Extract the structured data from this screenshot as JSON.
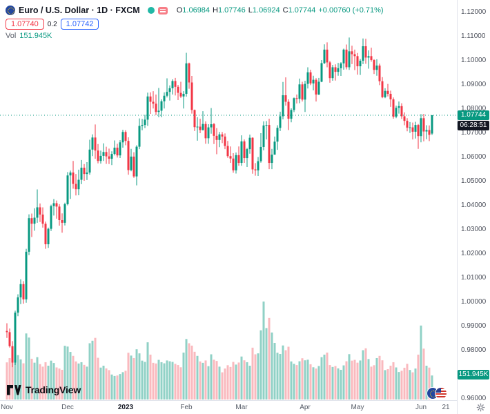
{
  "header": {
    "symbol_title": "Euro / U.S. Dollar · 1D · FXCM",
    "ohlc": {
      "o_label": "O",
      "o": "1.06984",
      "h_label": "H",
      "h": "1.07746",
      "l_label": "L",
      "l": "1.06924",
      "c_label": "C",
      "c": "1.07744",
      "change": "+0.00760 (+0.71%)"
    },
    "bid": "1.07740",
    "spread": "0.2",
    "ask": "1.07742",
    "vol_label": "Vol",
    "vol_value": "151.945K"
  },
  "price_axis": {
    "labels": [
      "1.12000",
      "1.11000",
      "1.10000",
      "1.09000",
      "1.08000",
      "1.07000",
      "1.06000",
      "1.05000",
      "1.04000",
      "1.03000",
      "1.02000",
      "1.01000",
      "1.00000",
      "0.99000",
      "0.98000",
      "0.97000",
      "0.96000"
    ],
    "last_price_label": "1.07744",
    "countdown": "06:28:51",
    "volume_label": "151.945K"
  },
  "time_axis": {
    "labels": [
      {
        "text": "Nov",
        "index": 0
      },
      {
        "text": "Dec",
        "index": 22
      },
      {
        "text": "2023",
        "index": 43,
        "year": true
      },
      {
        "text": "Feb",
        "index": 65
      },
      {
        "text": "Mar",
        "index": 85
      },
      {
        "text": "Apr",
        "index": 108
      },
      {
        "text": "May",
        "index": 127
      },
      {
        "text": "Jun",
        "index": 150
      },
      {
        "text": "21",
        "index": 159
      }
    ]
  },
  "footer": {
    "logo_text": "TradingView"
  },
  "icons": {
    "symbol_logo": "eu-flag-icon",
    "legend_dot": "dot-icon",
    "legend_menu": "menu-icon",
    "pair_flags": [
      "eu-flag-icon",
      "us-flag-icon"
    ],
    "axis_corner": "gear-icon"
  },
  "colors": {
    "up": "#089981",
    "down": "#f23645",
    "vol_up": "rgba(8,153,129,0.45)",
    "vol_down": "rgba(242,54,69,0.35)",
    "badge": "#089981",
    "bid": "#f23645",
    "ask": "#2962ff",
    "axis_text": "#4a4e59",
    "border": "#e0e3eb"
  },
  "chart_data": {
    "type": "candlestick+volume",
    "title": "Euro / U.S. Dollar",
    "exchange": "FXCM",
    "interval": "1D",
    "price_range": [
      0.96,
      1.12
    ],
    "volume_unit": "K",
    "last": {
      "open": 1.06984,
      "high": 1.07746,
      "low": 1.06924,
      "close": 1.07744,
      "change_pct": 0.71,
      "volume_k": 151.945
    },
    "candles": [
      [
        0.9881,
        0.9913,
        0.9852,
        0.9876,
        235
      ],
      [
        0.9876,
        0.9891,
        0.9812,
        0.9818,
        262
      ],
      [
        0.9818,
        0.9839,
        0.9731,
        0.975,
        308
      ],
      [
        0.975,
        0.9965,
        0.974,
        0.9957,
        352
      ],
      [
        0.9957,
        1.0033,
        0.9942,
        1.002,
        281
      ],
      [
        1.002,
        1.0095,
        0.9992,
        1.0075,
        254
      ],
      [
        1.0075,
        1.0087,
        0.9994,
        1.0012,
        229
      ],
      [
        1.0012,
        1.0221,
        0.9998,
        1.0209,
        418
      ],
      [
        1.0209,
        1.0364,
        1.0195,
        1.0348,
        392
      ],
      [
        1.0348,
        1.0367,
        1.027,
        1.0325,
        258
      ],
      [
        1.0325,
        1.0389,
        1.0296,
        1.035,
        233
      ],
      [
        1.035,
        1.0467,
        1.0329,
        1.0393,
        268
      ],
      [
        1.0393,
        1.0409,
        1.0332,
        1.0363,
        224
      ],
      [
        1.0363,
        1.0393,
        1.0309,
        1.0325,
        208
      ],
      [
        1.0325,
        1.0334,
        1.0221,
        1.024,
        236
      ],
      [
        1.024,
        1.0309,
        1.0225,
        1.0304,
        214
      ],
      [
        1.0304,
        1.0404,
        1.0295,
        1.0398,
        246
      ],
      [
        1.0398,
        1.0427,
        1.0359,
        1.041,
        231
      ],
      [
        1.041,
        1.0421,
        1.0346,
        1.0396,
        203
      ],
      [
        1.0396,
        1.0406,
        1.0317,
        1.034,
        196
      ],
      [
        1.034,
        1.0368,
        1.0288,
        1.0329,
        188
      ],
      [
        1.0329,
        1.0412,
        1.0318,
        1.0406,
        340
      ],
      [
        1.0406,
        1.0539,
        1.0401,
        1.0525,
        335
      ],
      [
        1.0525,
        1.0545,
        1.0428,
        1.0537,
        301
      ],
      [
        1.0537,
        1.0585,
        1.047,
        1.049,
        276
      ],
      [
        1.049,
        1.0531,
        1.0442,
        1.0468,
        241
      ],
      [
        1.0468,
        1.0549,
        1.0443,
        1.0507,
        228
      ],
      [
        1.0507,
        1.0589,
        1.0489,
        1.0557,
        236
      ],
      [
        1.0557,
        1.0572,
        1.0503,
        1.0531,
        219
      ],
      [
        1.0531,
        1.058,
        1.0506,
        1.0537,
        208
      ],
      [
        1.0537,
        1.0673,
        1.0528,
        1.0632,
        356
      ],
      [
        1.0632,
        1.0695,
        1.0605,
        1.0682,
        372
      ],
      [
        1.0682,
        1.0736,
        1.0594,
        1.0628,
        390
      ],
      [
        1.0628,
        1.0655,
        1.0575,
        1.0585,
        264
      ],
      [
        1.0585,
        1.0628,
        1.0574,
        1.0606,
        202
      ],
      [
        1.0606,
        1.0658,
        1.0585,
        1.0622,
        214
      ],
      [
        1.0622,
        1.0644,
        1.0573,
        1.0604,
        197
      ],
      [
        1.0604,
        1.0636,
        1.0572,
        1.0594,
        186
      ],
      [
        1.0594,
        1.0625,
        1.0568,
        1.0614,
        158
      ],
      [
        1.0614,
        1.067,
        1.0608,
        1.064,
        149
      ],
      [
        1.064,
        1.0656,
        1.0599,
        1.0608,
        152
      ],
      [
        1.0608,
        1.0671,
        1.0597,
        1.0662,
        161
      ],
      [
        1.0662,
        1.0714,
        1.064,
        1.0705,
        173
      ],
      [
        1.0705,
        1.0712,
        1.065,
        1.0668,
        182
      ],
      [
        1.0668,
        1.0683,
        1.0528,
        1.0547,
        296
      ],
      [
        1.0547,
        1.0635,
        1.0542,
        1.0603,
        278
      ],
      [
        1.0603,
        1.0621,
        1.0515,
        1.0521,
        262
      ],
      [
        1.0521,
        1.065,
        1.0484,
        1.0644,
        318
      ],
      [
        1.0644,
        1.0761,
        1.0634,
        1.073,
        292
      ],
      [
        1.073,
        1.0759,
        1.0712,
        1.0734,
        246
      ],
      [
        1.0734,
        1.0776,
        1.0721,
        1.0756,
        238
      ],
      [
        1.0756,
        1.0868,
        1.073,
        1.0852,
        362
      ],
      [
        1.0852,
        1.0869,
        1.078,
        1.083,
        284
      ],
      [
        1.083,
        1.0874,
        1.0802,
        1.0822,
        232
      ],
      [
        1.0822,
        1.086,
        1.0775,
        1.0788,
        228
      ],
      [
        1.0788,
        1.0887,
        1.0766,
        1.0793,
        251
      ],
      [
        1.0793,
        1.084,
        1.0766,
        1.0832,
        236
      ],
      [
        1.0832,
        1.0869,
        1.0802,
        1.0855,
        229
      ],
      [
        1.0855,
        1.0927,
        1.0848,
        1.0871,
        247
      ],
      [
        1.0871,
        1.0898,
        1.0835,
        1.0886,
        242
      ],
      [
        1.0886,
        1.0923,
        1.086,
        1.0916,
        238
      ],
      [
        1.0916,
        1.0929,
        1.0856,
        1.0892,
        226
      ],
      [
        1.0892,
        1.09,
        1.0837,
        1.0867,
        218
      ],
      [
        1.0867,
        1.0913,
        1.0846,
        1.0852,
        204
      ],
      [
        1.0852,
        1.0874,
        1.0802,
        1.0863,
        297
      ],
      [
        1.0863,
        1.1033,
        1.0851,
        1.0989,
        383
      ],
      [
        1.0989,
        1.0992,
        1.0884,
        1.091,
        356
      ],
      [
        1.091,
        1.0937,
        1.0781,
        1.0796,
        341
      ],
      [
        1.0796,
        1.0798,
        1.0709,
        1.0725,
        302
      ],
      [
        1.0725,
        1.0766,
        1.0669,
        1.0727,
        276
      ],
      [
        1.0727,
        1.076,
        1.07,
        1.0713,
        241
      ],
      [
        1.0713,
        1.0791,
        1.0711,
        1.0738,
        232
      ],
      [
        1.0738,
        1.0749,
        1.0656,
        1.0679,
        247
      ],
      [
        1.0679,
        1.0737,
        1.0656,
        1.0724,
        211
      ],
      [
        1.0724,
        1.0804,
        1.0698,
        1.0737,
        286
      ],
      [
        1.0737,
        1.0743,
        1.0655,
        1.0689,
        252
      ],
      [
        1.0689,
        1.0721,
        1.0613,
        1.0672,
        244
      ],
      [
        1.0672,
        1.0705,
        1.0642,
        1.0695,
        208
      ],
      [
        1.0695,
        1.0705,
        1.0659,
        1.0686,
        172
      ],
      [
        1.0686,
        1.0699,
        1.0634,
        1.0647,
        196
      ],
      [
        1.0647,
        1.0668,
        1.0598,
        1.0605,
        217
      ],
      [
        1.0605,
        1.0645,
        1.0577,
        1.0595,
        206
      ],
      [
        1.0595,
        1.0617,
        1.0536,
        1.0546,
        238
      ],
      [
        1.0546,
        1.062,
        1.0533,
        1.0609,
        221
      ],
      [
        1.0609,
        1.0645,
        1.0565,
        1.0577,
        234
      ],
      [
        1.0577,
        1.0691,
        1.0565,
        1.0666,
        272
      ],
      [
        1.0666,
        1.0674,
        1.0577,
        1.0597,
        248
      ],
      [
        1.0597,
        1.0639,
        1.056,
        1.0634,
        236
      ],
      [
        1.0634,
        1.0694,
        1.0615,
        1.0681,
        214
      ],
      [
        1.0681,
        1.0683,
        1.0532,
        1.055,
        328
      ],
      [
        1.055,
        1.0576,
        1.0524,
        1.0546,
        286
      ],
      [
        1.0546,
        1.0601,
        1.0523,
        1.0584,
        292
      ],
      [
        1.0584,
        1.07,
        1.0578,
        1.0643,
        438
      ],
      [
        1.0643,
        1.0749,
        1.0629,
        1.0732,
        620
      ],
      [
        1.0732,
        1.075,
        1.0674,
        1.0734,
        452
      ],
      [
        1.0734,
        1.076,
        1.0551,
        1.0577,
        516
      ],
      [
        1.0577,
        1.0635,
        1.0551,
        1.0611,
        424
      ],
      [
        1.0611,
        1.0686,
        1.0611,
        1.0665,
        358
      ],
      [
        1.0665,
        1.0733,
        1.0631,
        1.0722,
        296
      ],
      [
        1.0722,
        1.0789,
        1.0709,
        1.077,
        288
      ],
      [
        1.077,
        1.0912,
        1.0757,
        1.0857,
        342
      ],
      [
        1.0857,
        1.0931,
        1.0814,
        1.083,
        312
      ],
      [
        1.083,
        1.084,
        1.0713,
        1.076,
        334
      ],
      [
        1.076,
        1.0803,
        1.0745,
        1.0796,
        241
      ],
      [
        1.0796,
        1.0848,
        1.0787,
        1.0845,
        226
      ],
      [
        1.0845,
        1.086,
        1.0823,
        1.0842,
        218
      ],
      [
        1.0842,
        1.0926,
        1.0824,
        1.0902,
        242
      ],
      [
        1.0902,
        1.0913,
        1.0831,
        1.0839,
        261
      ],
      [
        1.0839,
        1.0917,
        1.0788,
        1.0904,
        248
      ],
      [
        1.0904,
        1.0973,
        1.0885,
        1.0952,
        252
      ],
      [
        1.0952,
        1.0963,
        1.0899,
        1.0906,
        223
      ],
      [
        1.0906,
        1.0938,
        1.0877,
        1.0921,
        204
      ],
      [
        1.0921,
        1.0928,
        1.0831,
        1.086,
        196
      ],
      [
        1.086,
        1.0929,
        1.0858,
        1.0913,
        212
      ],
      [
        1.0913,
        1.1003,
        1.0911,
        1.099,
        268
      ],
      [
        1.099,
        1.1068,
        1.0986,
        1.1046,
        284
      ],
      [
        1.1046,
        1.1076,
        1.0973,
        1.0993,
        297
      ],
      [
        1.0993,
        1.0999,
        1.0909,
        1.0928,
        218
      ],
      [
        1.0928,
        1.0983,
        1.0917,
        1.0973,
        206
      ],
      [
        1.0973,
        1.0985,
        1.0918,
        1.0954,
        212
      ],
      [
        1.0954,
        1.0991,
        1.0938,
        1.0969,
        197
      ],
      [
        1.0969,
        1.0994,
        1.0937,
        1.0989,
        188
      ],
      [
        1.0989,
        1.105,
        1.0963,
        1.1046,
        216
      ],
      [
        1.1046,
        1.1067,
        1.0964,
        1.0973,
        242
      ],
      [
        1.0973,
        1.1096,
        1.0962,
        1.1039,
        287
      ],
      [
        1.1039,
        1.1062,
        1.0986,
        1.1027,
        246
      ],
      [
        1.1027,
        1.1046,
        1.0961,
        1.1019,
        251
      ],
      [
        1.1019,
        1.1032,
        1.0942,
        1.0977,
        233
      ],
      [
        1.0977,
        1.1007,
        1.0941,
        1.1,
        247
      ],
      [
        1.1,
        1.1092,
        1.0986,
        1.106,
        312
      ],
      [
        1.106,
        1.1091,
        1.0987,
        1.1013,
        324
      ],
      [
        1.1013,
        1.1043,
        1.0967,
        1.1019,
        256
      ],
      [
        1.1019,
        1.1054,
        1.0996,
        1.1003,
        208
      ],
      [
        1.1003,
        1.1006,
        1.0945,
        1.0962,
        217
      ],
      [
        1.0962,
        1.1006,
        1.0938,
        1.098,
        262
      ],
      [
        1.098,
        1.0988,
        1.0899,
        1.0915,
        276
      ],
      [
        1.0915,
        1.0932,
        1.0845,
        1.0849,
        248
      ],
      [
        1.0849,
        1.0886,
        1.0845,
        1.0875,
        186
      ],
      [
        1.0875,
        1.0904,
        1.0852,
        1.0863,
        192
      ],
      [
        1.0863,
        1.0876,
        1.0809,
        1.084,
        214
      ],
      [
        1.084,
        1.0848,
        1.076,
        1.0768,
        236
      ],
      [
        1.0768,
        1.0814,
        1.0762,
        1.0805,
        203
      ],
      [
        1.0805,
        1.0831,
        1.0781,
        1.0812,
        174
      ],
      [
        1.0812,
        1.0824,
        1.0759,
        1.077,
        182
      ],
      [
        1.077,
        1.0786,
        1.0733,
        1.0751,
        201
      ],
      [
        1.0751,
        1.0762,
        1.0708,
        1.0723,
        226
      ],
      [
        1.0723,
        1.0746,
        1.0701,
        1.0724,
        187
      ],
      [
        1.0724,
        1.0744,
        1.0674,
        1.0706,
        172
      ],
      [
        1.0706,
        1.0747,
        1.0678,
        1.0734,
        196
      ],
      [
        1.0734,
        1.0738,
        1.0635,
        1.0688,
        284
      ],
      [
        1.0688,
        1.0779,
        1.0662,
        1.0762,
        468
      ],
      [
        1.0762,
        1.078,
        1.0666,
        1.0707,
        322
      ],
      [
        1.0707,
        1.0733,
        1.0675,
        1.0713,
        214
      ],
      [
        1.0713,
        1.0732,
        1.0667,
        1.0693,
        202
      ],
      [
        1.06984,
        1.07746,
        1.06924,
        1.07744,
        152
      ]
    ]
  }
}
